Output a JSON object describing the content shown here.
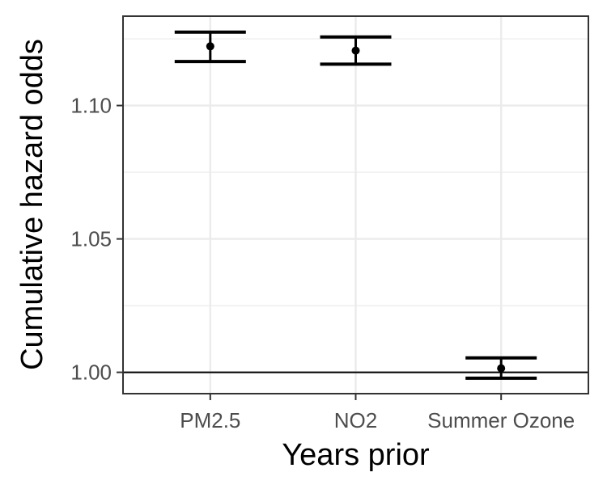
{
  "chart_data": {
    "type": "errorbar",
    "xlabel": "Years prior",
    "ylabel": "Cumulative hazard odds",
    "categories": [
      "PM2.5",
      "NO2",
      "Summer Ozone"
    ],
    "points": [
      {
        "category": "PM2.5",
        "estimate": 1.1222,
        "lower": 1.1165,
        "upper": 1.1275
      },
      {
        "category": "NO2",
        "estimate": 1.1206,
        "lower": 1.1155,
        "upper": 1.1257
      },
      {
        "category": "Summer Ozone",
        "estimate": 1.0015,
        "lower": 0.9978,
        "upper": 1.0054
      }
    ],
    "ylim": [
      0.992,
      1.1335
    ],
    "yticks": [
      1.0,
      1.05,
      1.1
    ],
    "ytick_labels": [
      "1.00",
      "1.05",
      "1.10"
    ],
    "reference_line": 1.0,
    "grid": true,
    "theme": "bw",
    "colors": {
      "panel_border": "#333333",
      "grid": "#ebebeb",
      "marks": "#000000",
      "tick_labels": "#4d4d4d"
    }
  }
}
